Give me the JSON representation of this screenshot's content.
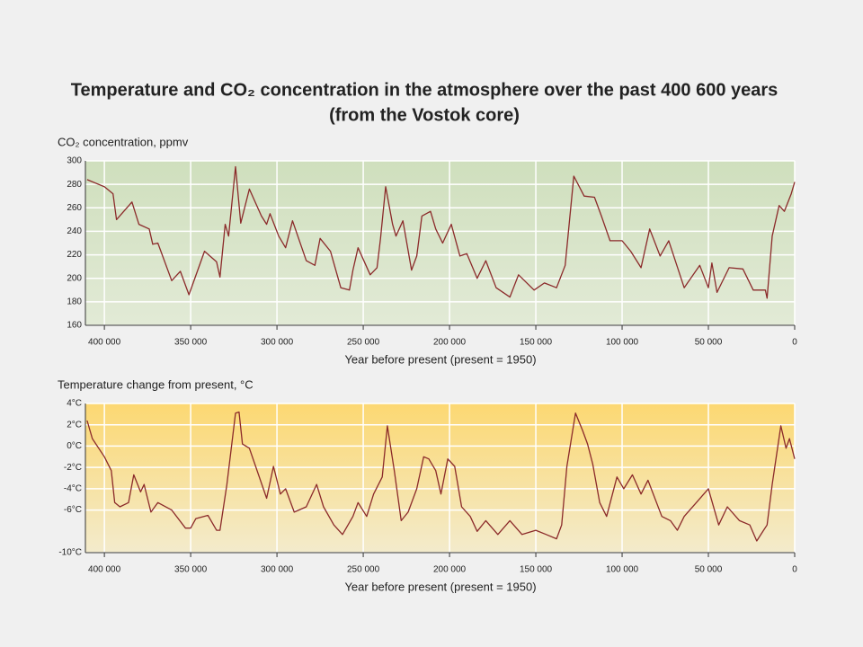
{
  "chart_data": [
    {
      "type": "line",
      "title": "Temperature and CO₂ concentration in the atmosphere over the past 400 600 years",
      "subtitle": "(from the Vostok core)",
      "ylabel": "CO₂ concentration, ppmv",
      "xlabel": "Year before present (present = 1950)",
      "color": "#8b2a2a",
      "grid": true,
      "xlim": [
        411000,
        0
      ],
      "xticks": [
        {
          "value": 400000,
          "label": "400 000"
        },
        {
          "value": 350000,
          "label": "350 000"
        },
        {
          "value": 300000,
          "label": "300 000"
        },
        {
          "value": 250000,
          "label": "250 000"
        },
        {
          "value": 200000,
          "label": "200 000"
        },
        {
          "value": 150000,
          "label": "150 000"
        },
        {
          "value": 100000,
          "label": "100 000"
        },
        {
          "value": 50000,
          "label": "50 000"
        },
        0
      ],
      "ylim": [
        160,
        300
      ],
      "yticks": [
        160,
        180,
        200,
        220,
        240,
        260,
        280,
        300
      ],
      "x": [
        410000,
        400000,
        395000,
        393000,
        384000,
        380000,
        374000,
        372000,
        369000,
        361000,
        356000,
        351000,
        342000,
        335000,
        333000,
        330000,
        328000,
        324000,
        321000,
        316000,
        309000,
        306000,
        304000,
        299000,
        295000,
        291000,
        283000,
        278000,
        275000,
        269000,
        263000,
        258000,
        256000,
        253000,
        246000,
        242000,
        240000,
        237000,
        233000,
        231000,
        227000,
        222000,
        219000,
        216000,
        211000,
        208000,
        204000,
        199000,
        194000,
        190000,
        184000,
        179000,
        173000,
        165000,
        160000,
        151000,
        145000,
        138000,
        133000,
        128000,
        122000,
        116000,
        112000,
        107000,
        100000,
        95000,
        89000,
        84000,
        78000,
        73000,
        64000,
        55000,
        50000,
        48000,
        45000,
        38000,
        30000,
        24000,
        17000,
        16000,
        13000,
        9000,
        6000,
        2000,
        0
      ],
      "values": [
        284,
        278,
        272,
        250,
        265,
        246,
        242,
        229,
        230,
        198,
        206,
        186,
        223,
        214,
        201,
        246,
        236,
        295,
        247,
        276,
        253,
        246,
        255,
        236,
        226,
        249,
        215,
        211,
        234,
        223,
        192,
        190,
        207,
        226,
        203,
        209,
        234,
        278,
        246,
        236,
        249,
        207,
        219,
        253,
        257,
        242,
        230,
        246,
        219,
        221,
        200,
        215,
        192,
        184,
        203,
        190,
        196,
        192,
        211,
        287,
        270,
        269,
        253,
        232,
        232,
        223,
        209,
        242,
        219,
        232,
        192,
        211,
        192,
        213,
        188,
        209,
        208,
        190,
        190,
        183,
        236,
        262,
        257,
        272,
        282
      ]
    },
    {
      "type": "line",
      "ylabel": "Temperature change from present, °C",
      "xlabel": "Year before present (present = 1950)",
      "color": "#8b2a2a",
      "grid": true,
      "xlim": [
        411000,
        0
      ],
      "xticks": [
        {
          "value": 400000,
          "label": "400 000"
        },
        {
          "value": 350000,
          "label": "350 000"
        },
        {
          "value": 300000,
          "label": "300 000"
        },
        {
          "value": 250000,
          "label": "250 000"
        },
        {
          "value": 200000,
          "label": "200 000"
        },
        {
          "value": 150000,
          "label": "150 000"
        },
        {
          "value": 100000,
          "label": "100 000"
        },
        {
          "value": 50000,
          "label": "50 000"
        },
        0
      ],
      "ylim": [
        -10,
        4
      ],
      "yticks": [
        {
          "value": 4,
          "label": "4°C"
        },
        {
          "value": 2,
          "label": "2°C"
        },
        {
          "value": 0,
          "label": "0°C"
        },
        {
          "value": -2,
          "label": "-2°C"
        },
        {
          "value": -4,
          "label": "-4°C"
        },
        {
          "value": -6,
          "label": "-6°C"
        },
        {
          "value": -10,
          "label": "-10°C"
        }
      ],
      "x": [
        410000,
        407000,
        400000,
        396000,
        394000,
        391000,
        386000,
        383000,
        379000,
        377000,
        373000,
        369000,
        361000,
        353000,
        350000,
        347000,
        340000,
        335000,
        333000,
        329000,
        324000,
        322000,
        320000,
        316000,
        306000,
        302000,
        298000,
        295000,
        290000,
        283000,
        277000,
        273000,
        267000,
        262000,
        256000,
        253000,
        248000,
        244000,
        239000,
        236000,
        232000,
        228000,
        224000,
        219000,
        215000,
        212000,
        208000,
        205000,
        201000,
        197000,
        193000,
        188000,
        184000,
        179000,
        172000,
        165000,
        158000,
        150000,
        144000,
        138000,
        135000,
        132000,
        127000,
        123000,
        120000,
        117000,
        113000,
        109000,
        103000,
        99000,
        94000,
        89000,
        85000,
        77000,
        72000,
        68000,
        64000,
        57000,
        50000,
        44000,
        39000,
        32000,
        26000,
        22000,
        18000,
        16000,
        13000,
        8000,
        5000,
        3000,
        0
      ],
      "values": [
        2.4,
        0.7,
        -1.0,
        -2.3,
        -5.3,
        -5.7,
        -5.3,
        -2.7,
        -4.3,
        -3.6,
        -6.2,
        -5.3,
        -6.0,
        -7.7,
        -7.7,
        -6.8,
        -6.5,
        -7.9,
        -7.9,
        -3.6,
        3.1,
        3.2,
        0.2,
        -0.2,
        -4.9,
        -1.9,
        -4.5,
        -4.0,
        -6.2,
        -5.7,
        -3.6,
        -5.7,
        -7.4,
        -8.3,
        -6.6,
        -5.3,
        -6.6,
        -4.5,
        -2.9,
        1.9,
        -2.3,
        -7.0,
        -6.2,
        -4.0,
        -1.0,
        -1.2,
        -2.3,
        -4.5,
        -1.2,
        -1.9,
        -5.7,
        -6.6,
        -8.0,
        -7.0,
        -8.3,
        -7.0,
        -8.3,
        -7.9,
        -8.3,
        -8.7,
        -7.4,
        -1.9,
        3.1,
        1.5,
        0.2,
        -1.7,
        -5.3,
        -6.6,
        -2.9,
        -4.0,
        -2.7,
        -4.5,
        -3.2,
        -6.6,
        -7.0,
        -7.9,
        -6.6,
        -5.3,
        -4.0,
        -7.4,
        -5.7,
        -7.0,
        -7.4,
        -8.9,
        -7.9,
        -7.4,
        -3.6,
        1.9,
        -0.2,
        0.7,
        -1.2
      ]
    }
  ]
}
